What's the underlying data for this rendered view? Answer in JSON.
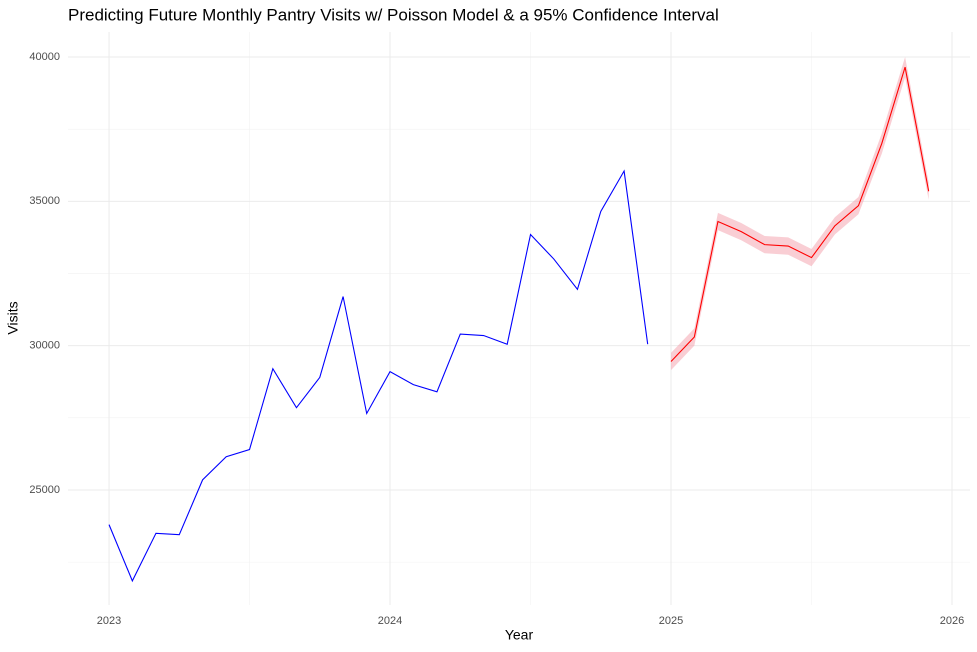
{
  "chart_data": {
    "type": "line",
    "title": "Predicting Future Monthly Pantry Visits w/ Poisson Model & a 95% Confidence Interval",
    "x_label": "Year",
    "y_label": "Visits",
    "xlim": [
      2022.854,
      2026.064
    ],
    "xticks": [
      2023,
      2024,
      2025,
      2026
    ],
    "minor_xticks": [
      2023.5,
      2024.5,
      2025.5
    ],
    "ylim": [
      21015,
      40866
    ],
    "yticks": [
      25000,
      30000,
      35000,
      40000
    ],
    "minor_yticks": [
      22500,
      27500,
      32500,
      37500
    ],
    "grid": true,
    "series": [
      {
        "color": "#0000ff",
        "x": [
          2023.0,
          2023.083,
          2023.167,
          2023.25,
          2023.333,
          2023.417,
          2023.5,
          2023.583,
          2023.667,
          2023.75,
          2023.833,
          2023.917,
          2024.0,
          2024.083,
          2024.167,
          2024.25,
          2024.333,
          2024.417,
          2024.5,
          2024.583,
          2024.667,
          2024.75,
          2024.833,
          2024.917
        ],
        "values": [
          23800,
          21850,
          23500,
          23450,
          25350,
          26150,
          26400,
          29200,
          27850,
          28900,
          31700,
          27650,
          29100,
          28650,
          28400,
          30400,
          30350,
          30050,
          33850,
          33000,
          31950,
          34650,
          36050,
          30050
        ]
      },
      {
        "color": "#ff0000",
        "band_color": "#f4a6b0",
        "x": [
          2025.0,
          2025.083,
          2025.167,
          2025.25,
          2025.333,
          2025.417,
          2025.5,
          2025.583,
          2025.667,
          2025.75,
          2025.833,
          2025.917
        ],
        "values": [
          29450,
          30300,
          34300,
          33950,
          33500,
          33450,
          33050,
          34150,
          34850,
          37000,
          39650,
          35350
        ],
        "lower": [
          29150,
          30000,
          34000,
          33650,
          33200,
          33150,
          32750,
          33850,
          34550,
          36650,
          39300,
          35050
        ],
        "upper": [
          29750,
          30600,
          34600,
          34250,
          33800,
          33750,
          33350,
          34450,
          35150,
          37350,
          40000,
          35650
        ]
      }
    ]
  }
}
